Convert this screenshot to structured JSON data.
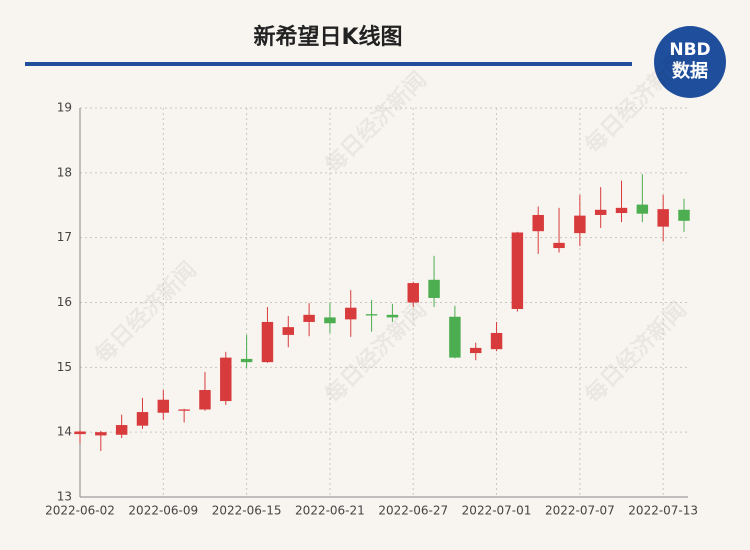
{
  "chart_data": {
    "type": "candlestick",
    "title": "新希望日K线图",
    "logo": [
      "NBD",
      "数据"
    ],
    "watermark": "每日经济新闻",
    "categories": [
      "2022-06-02",
      null,
      null,
      null,
      "2022-06-09",
      null,
      null,
      null,
      "2022-06-15",
      null,
      null,
      null,
      "2022-06-21",
      null,
      null,
      null,
      "2022-06-27",
      null,
      null,
      null,
      "2022-07-01",
      null,
      null,
      null,
      "2022-07-07",
      null,
      null,
      null,
      "2022-07-13",
      null
    ],
    "open": [
      13.97,
      13.95,
      13.96,
      14.1,
      14.3,
      14.33,
      14.35,
      14.48,
      15.13,
      15.08,
      15.5,
      15.7,
      15.77,
      15.74,
      15.82,
      15.81,
      16.0,
      16.35,
      15.78,
      15.22,
      15.28,
      15.9,
      17.1,
      16.84,
      17.07,
      17.35,
      17.38,
      17.51,
      17.17,
      17.43
    ],
    "close": [
      14.01,
      14.0,
      14.11,
      14.31,
      14.5,
      14.35,
      14.65,
      15.15,
      15.08,
      15.7,
      15.62,
      15.81,
      15.68,
      15.92,
      15.8,
      15.77,
      16.3,
      16.07,
      15.15,
      15.3,
      15.53,
      17.08,
      17.35,
      16.92,
      17.34,
      17.43,
      17.46,
      17.37,
      17.44,
      17.26
    ],
    "high": [
      14.03,
      14.02,
      14.27,
      14.53,
      14.65,
      14.36,
      14.93,
      15.24,
      15.5,
      15.93,
      15.79,
      15.99,
      16.0,
      16.19,
      16.04,
      15.98,
      16.32,
      16.72,
      15.95,
      15.38,
      15.7,
      17.09,
      17.48,
      17.46,
      17.66,
      17.78,
      17.88,
      17.98,
      17.66,
      17.6
    ],
    "low": [
      13.83,
      13.71,
      13.91,
      14.05,
      14.19,
      14.15,
      14.33,
      14.42,
      14.99,
      15.07,
      15.31,
      15.48,
      15.53,
      15.47,
      15.55,
      15.7,
      15.93,
      15.93,
      15.14,
      15.11,
      15.25,
      15.86,
      16.75,
      16.77,
      16.87,
      17.15,
      17.24,
      17.24,
      16.94,
      17.09
    ],
    "up_color": "#d83b3b",
    "down_color": "#4cae50",
    "ylim": [
      13,
      19
    ],
    "yticks": [
      13,
      14,
      15,
      16,
      17,
      18,
      19
    ],
    "grid": true
  }
}
